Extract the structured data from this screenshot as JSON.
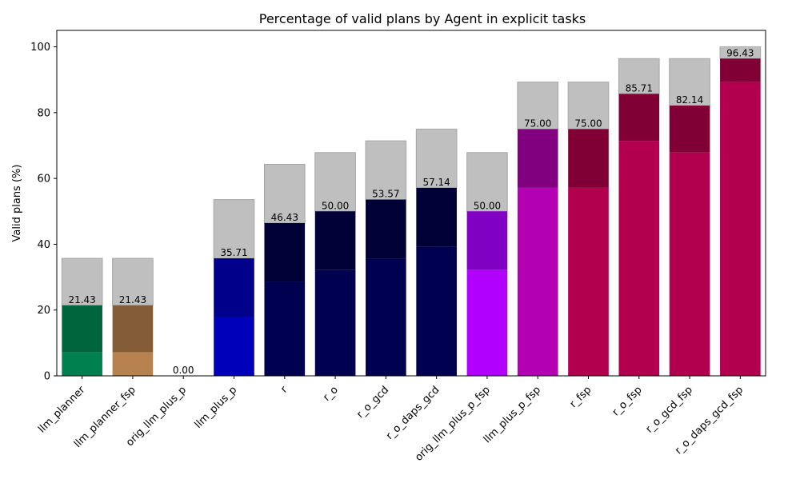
{
  "chart_data": {
    "type": "bar",
    "title": "Percentage of valid plans by Agent in explicit tasks",
    "xlabel": "",
    "ylabel": "Valid plans (%)",
    "ylim": [
      0,
      105
    ],
    "yticks": [
      0,
      20,
      40,
      60,
      80,
      100
    ],
    "grid": false,
    "categories": [
      "llm_planner",
      "llm_planner_fsp",
      "orig_llm_plus_p",
      "llm_plus_p",
      "r",
      "r_o",
      "r_o_gcd",
      "r_o_daps_gcd",
      "orig_llm_plus_p_fsp",
      "llm_plus_p_fsp",
      "r_fsp",
      "r_o_fsp",
      "r_o_gcd_fsp",
      "r_o_daps_gcd_fsp"
    ],
    "series": [
      {
        "values": [
          7.14,
          7.14,
          0,
          17.86,
          28.57,
          32.14,
          35.71,
          39.29,
          32.14,
          57.14,
          57.14,
          71.43,
          67.86,
          89.29
        ],
        "colors": [
          "#00804f",
          "#b7824f",
          "#cccccc",
          "#0000bb",
          "#000050",
          "#000050",
          "#000050",
          "#000050",
          "#b200ff",
          "#b200b2",
          "#b2004f",
          "#b2004f",
          "#b2004f",
          "#b2004f"
        ]
      },
      {
        "values": [
          21.43,
          21.43,
          0.0,
          35.71,
          46.43,
          50.0,
          53.57,
          57.14,
          50.0,
          75.0,
          75.0,
          85.71,
          82.14,
          96.43
        ],
        "colors": [
          "#00643c",
          "#845c38",
          "#999999",
          "#00008a",
          "#000037",
          "#000037",
          "#000037",
          "#000037",
          "#8000c4",
          "#800080",
          "#800036",
          "#800036",
          "#800036",
          "#800036"
        ]
      },
      {
        "values": [
          35.71,
          35.71,
          0,
          53.57,
          64.29,
          67.86,
          71.43,
          75.0,
          67.86,
          89.29,
          89.29,
          96.43,
          96.43,
          100.0
        ],
        "color": "#bfbfbf"
      }
    ],
    "data_labels": [
      "21.43",
      "21.43",
      "0.00",
      "35.71",
      "46.43",
      "50.00",
      "53.57",
      "57.14",
      "50.00",
      "75.00",
      "75.00",
      "85.71",
      "82.14",
      "96.43"
    ]
  }
}
